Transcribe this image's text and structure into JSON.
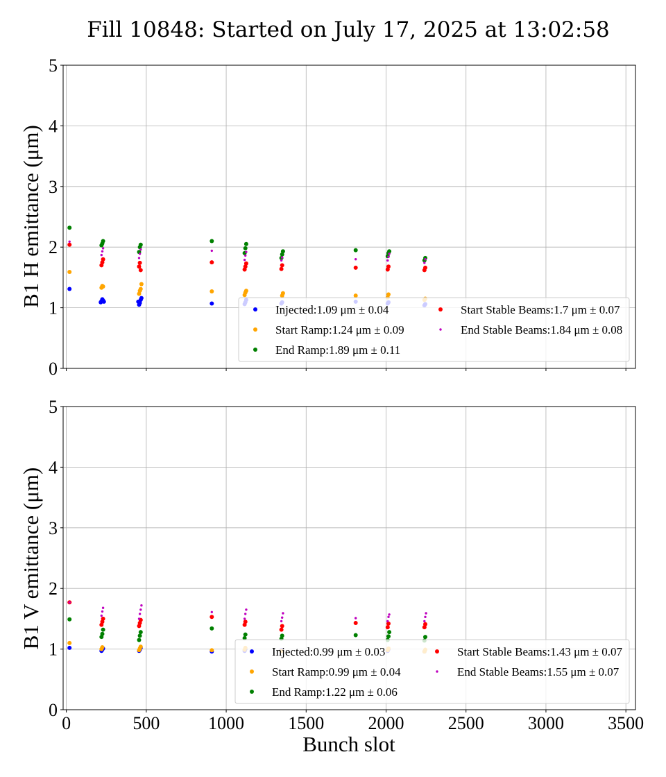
{
  "title": "Fill 10848: Started on July 17, 2025 at 13:02:58",
  "xlabel": "Bunch slot",
  "chart_data": [
    {
      "type": "scatter",
      "ylabel": "B1 H emittance (μm)",
      "xlim": [
        -20,
        3560
      ],
      "ylim": [
        0,
        5
      ],
      "xticks": [
        0,
        500,
        1000,
        1500,
        2000,
        2500,
        3000,
        3500
      ],
      "yticks": [
        0,
        1,
        2,
        3,
        4,
        5
      ],
      "grid": true,
      "legend_position": "lower-right",
      "series": [
        {
          "name": "Injected",
          "legend": "Injected:1.09 μm ± 0.04",
          "color": "#0000ff",
          "marker": "dot",
          "points": [
            [
              20,
              1.31
            ],
            [
              215,
              1.09
            ],
            [
              220,
              1.11
            ],
            [
              225,
              1.14
            ],
            [
              230,
              1.12
            ],
            [
              235,
              1.1
            ],
            [
              455,
              1.05
            ],
            [
              460,
              1.08
            ],
            [
              465,
              1.13
            ],
            [
              470,
              1.16
            ],
            [
              450,
              1.1
            ],
            [
              910,
              1.07
            ],
            [
              1115,
              1.06
            ],
            [
              1120,
              1.09
            ],
            [
              1125,
              1.13
            ],
            [
              1345,
              1.07
            ],
            [
              1350,
              1.09
            ],
            [
              1810,
              1.1
            ],
            [
              2010,
              1.07
            ],
            [
              2015,
              1.09
            ],
            [
              2240,
              1.04
            ],
            [
              2245,
              1.06
            ]
          ]
        },
        {
          "name": "Start Ramp",
          "legend": "Start Ramp:1.24 μm ± 0.09",
          "color": "#ffa500",
          "marker": "dot",
          "points": [
            [
              20,
              1.59
            ],
            [
              220,
              1.33
            ],
            [
              225,
              1.36
            ],
            [
              230,
              1.35
            ],
            [
              455,
              1.23
            ],
            [
              460,
              1.28
            ],
            [
              465,
              1.31
            ],
            [
              470,
              1.39
            ],
            [
              910,
              1.27
            ],
            [
              1115,
              1.21
            ],
            [
              1120,
              1.25
            ],
            [
              1125,
              1.28
            ],
            [
              1350,
              1.2
            ],
            [
              1355,
              1.24
            ],
            [
              1810,
              1.2
            ],
            [
              2010,
              1.17
            ],
            [
              2015,
              1.22
            ],
            [
              2240,
              1.13
            ],
            [
              2245,
              1.15
            ]
          ]
        },
        {
          "name": "End Ramp",
          "legend": "End Ramp:1.89 μm ± 0.11",
          "color": "#008000",
          "marker": "dot",
          "points": [
            [
              20,
              2.32
            ],
            [
              220,
              2.03
            ],
            [
              225,
              2.06
            ],
            [
              230,
              2.1
            ],
            [
              455,
              1.92
            ],
            [
              460,
              2.0
            ],
            [
              465,
              2.04
            ],
            [
              910,
              2.1
            ],
            [
              1115,
              1.9
            ],
            [
              1120,
              1.98
            ],
            [
              1125,
              2.05
            ],
            [
              1345,
              1.82
            ],
            [
              1350,
              1.88
            ],
            [
              1355,
              1.93
            ],
            [
              1810,
              1.95
            ],
            [
              2010,
              1.85
            ],
            [
              2015,
              1.9
            ],
            [
              2020,
              1.93
            ],
            [
              2240,
              1.78
            ],
            [
              2245,
              1.82
            ]
          ]
        },
        {
          "name": "Start Stable Beams",
          "legend": "Start Stable Beams:1.7 μm ± 0.07",
          "color": "#ff0000",
          "marker": "dot",
          "points": [
            [
              20,
              2.04
            ],
            [
              220,
              1.7
            ],
            [
              225,
              1.75
            ],
            [
              230,
              1.8
            ],
            [
              455,
              1.68
            ],
            [
              460,
              1.74
            ],
            [
              465,
              1.62
            ],
            [
              910,
              1.75
            ],
            [
              1115,
              1.63
            ],
            [
              1120,
              1.68
            ],
            [
              1125,
              1.73
            ],
            [
              1345,
              1.64
            ],
            [
              1350,
              1.7
            ],
            [
              1810,
              1.66
            ],
            [
              2010,
              1.63
            ],
            [
              2015,
              1.68
            ],
            [
              2240,
              1.62
            ],
            [
              2245,
              1.66
            ]
          ]
        },
        {
          "name": "End Stable Beams",
          "legend": "End Stable Beams:1.84 μm ± 0.08",
          "color": "#bf00bf",
          "marker": "small",
          "points": [
            [
              20,
              2.09
            ],
            [
              220,
              1.87
            ],
            [
              225,
              1.93
            ],
            [
              230,
              1.98
            ],
            [
              455,
              1.82
            ],
            [
              460,
              1.89
            ],
            [
              465,
              1.96
            ],
            [
              910,
              1.94
            ],
            [
              1115,
              1.79
            ],
            [
              1120,
              1.86
            ],
            [
              1125,
              1.92
            ],
            [
              1345,
              1.78
            ],
            [
              1350,
              1.83
            ],
            [
              1810,
              1.8
            ],
            [
              2010,
              1.78
            ],
            [
              2015,
              1.84
            ],
            [
              2020,
              1.89
            ],
            [
              2240,
              1.74
            ],
            [
              2245,
              1.8
            ]
          ]
        }
      ]
    },
    {
      "type": "scatter",
      "ylabel": "B1 V emittance (μm)",
      "xlim": [
        -20,
        3560
      ],
      "ylim": [
        0,
        5
      ],
      "xticks": [
        0,
        500,
        1000,
        1500,
        2000,
        2500,
        3000,
        3500
      ],
      "yticks": [
        0,
        1,
        2,
        3,
        4,
        5
      ],
      "grid": true,
      "legend_position": "lower-right",
      "series": [
        {
          "name": "Injected",
          "legend": "Injected:0.99 μm ± 0.03",
          "color": "#0000ff",
          "marker": "dot",
          "points": [
            [
              20,
              1.02
            ],
            [
              220,
              0.97
            ],
            [
              225,
              0.99
            ],
            [
              230,
              1.01
            ],
            [
              455,
              0.97
            ],
            [
              460,
              0.99
            ],
            [
              465,
              1.02
            ],
            [
              910,
              0.96
            ],
            [
              1115,
              0.97
            ],
            [
              1120,
              1.0
            ],
            [
              1345,
              0.98
            ],
            [
              2010,
              0.97
            ],
            [
              2015,
              1.0
            ],
            [
              2240,
              0.96
            ]
          ]
        },
        {
          "name": "Start Ramp",
          "legend": "Start Ramp:0.99 μm ± 0.04",
          "color": "#ffa500",
          "marker": "dot",
          "points": [
            [
              20,
              1.1
            ],
            [
              220,
              1.0
            ],
            [
              225,
              1.03
            ],
            [
              455,
              0.98
            ],
            [
              460,
              1.01
            ],
            [
              465,
              1.04
            ],
            [
              910,
              0.98
            ],
            [
              1115,
              0.99
            ],
            [
              1120,
              1.02
            ],
            [
              1345,
              0.97
            ],
            [
              2010,
              0.98
            ],
            [
              2015,
              1.01
            ],
            [
              2240,
              0.96
            ],
            [
              2245,
              0.99
            ]
          ]
        },
        {
          "name": "End Ramp",
          "legend": "End Ramp:1.22 μm ± 0.06",
          "color": "#008000",
          "marker": "dot",
          "points": [
            [
              20,
              1.49
            ],
            [
              220,
              1.2
            ],
            [
              225,
              1.25
            ],
            [
              230,
              1.32
            ],
            [
              455,
              1.15
            ],
            [
              460,
              1.22
            ],
            [
              465,
              1.28
            ],
            [
              910,
              1.34
            ],
            [
              1115,
              1.18
            ],
            [
              1120,
              1.24
            ],
            [
              1345,
              1.17
            ],
            [
              1350,
              1.22
            ],
            [
              1810,
              1.23
            ],
            [
              2010,
              1.15
            ],
            [
              2015,
              1.21
            ],
            [
              2020,
              1.28
            ],
            [
              2240,
              1.14
            ],
            [
              2245,
              1.2
            ]
          ]
        },
        {
          "name": "Start Stable Beams",
          "legend": "Start Stable Beams:1.43 μm ± 0.07",
          "color": "#ff0000",
          "marker": "dot",
          "points": [
            [
              20,
              1.77
            ],
            [
              220,
              1.4
            ],
            [
              225,
              1.45
            ],
            [
              230,
              1.5
            ],
            [
              455,
              1.38
            ],
            [
              460,
              1.43
            ],
            [
              465,
              1.48
            ],
            [
              910,
              1.53
            ],
            [
              1115,
              1.4
            ],
            [
              1120,
              1.45
            ],
            [
              1345,
              1.32
            ],
            [
              1350,
              1.38
            ],
            [
              1810,
              1.43
            ],
            [
              2010,
              1.36
            ],
            [
              2015,
              1.42
            ],
            [
              2240,
              1.36
            ],
            [
              2245,
              1.41
            ]
          ]
        },
        {
          "name": "End Stable Beams",
          "legend": "End Stable Beams:1.55 μm ± 0.07",
          "color": "#bf00bf",
          "marker": "small",
          "points": [
            [
              20,
              1.77
            ],
            [
              220,
              1.55
            ],
            [
              225,
              1.62
            ],
            [
              230,
              1.68
            ],
            [
              455,
              1.5
            ],
            [
              460,
              1.58
            ],
            [
              465,
              1.65
            ],
            [
              470,
              1.72
            ],
            [
              910,
              1.61
            ],
            [
              1115,
              1.5
            ],
            [
              1120,
              1.58
            ],
            [
              1125,
              1.65
            ],
            [
              1345,
              1.46
            ],
            [
              1350,
              1.52
            ],
            [
              1355,
              1.59
            ],
            [
              1810,
              1.51
            ],
            [
              2010,
              1.46
            ],
            [
              2015,
              1.53
            ],
            [
              2020,
              1.57
            ],
            [
              2240,
              1.46
            ],
            [
              2245,
              1.53
            ],
            [
              2250,
              1.59
            ]
          ]
        }
      ]
    }
  ]
}
